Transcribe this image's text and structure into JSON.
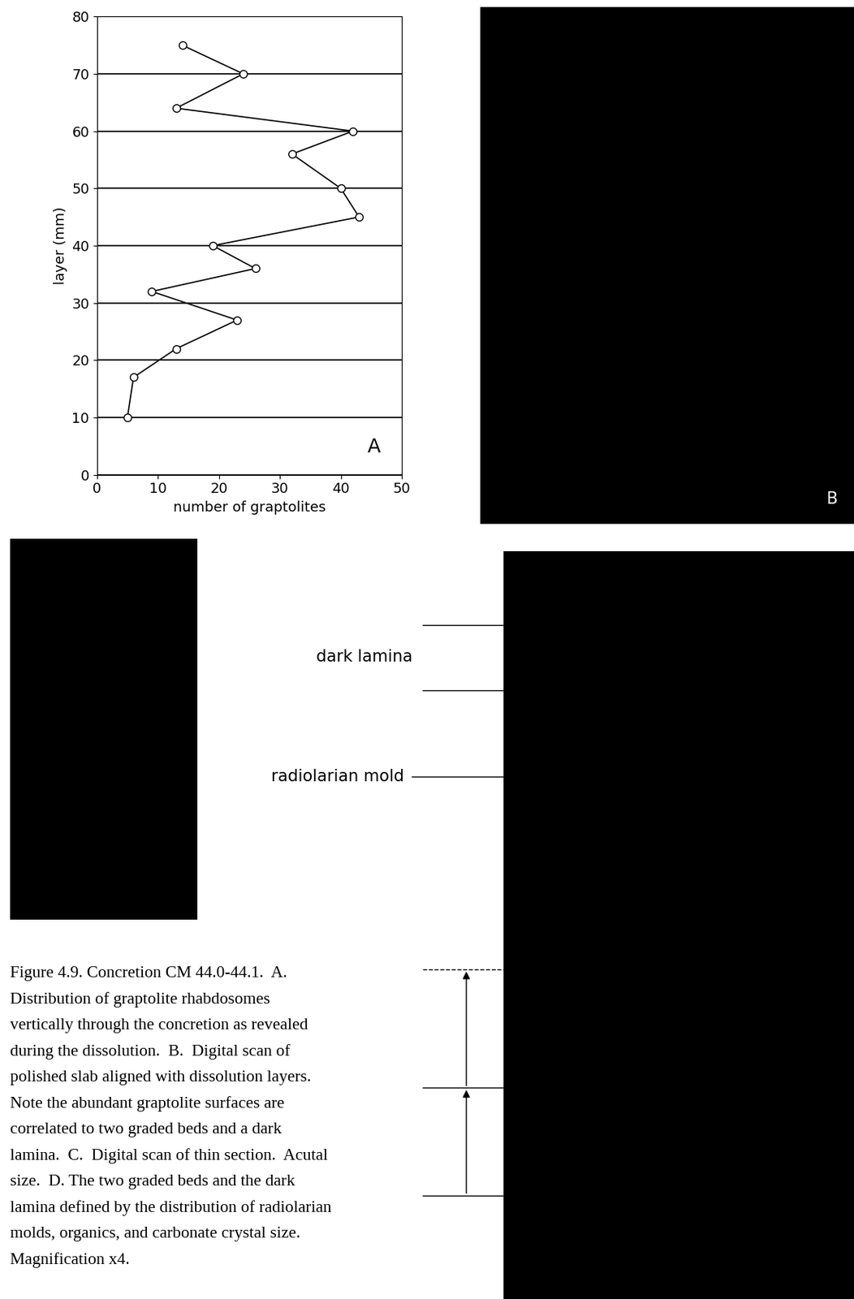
{
  "chart_data": {
    "type": "line",
    "x": [
      14,
      24,
      13,
      42,
      32,
      40,
      43,
      19,
      26,
      9,
      23,
      13,
      6,
      5
    ],
    "values": [
      75,
      70,
      64,
      60,
      56,
      50,
      45,
      40,
      36,
      32,
      27,
      22,
      17,
      10
    ],
    "xlabel": "number of graptolites",
    "ylabel": "layer (mm)",
    "xlim": [
      0,
      50
    ],
    "xticks": [
      0,
      10,
      20,
      30,
      40,
      50
    ],
    "ylim": [
      0,
      80
    ],
    "yticks": [
      0,
      10,
      20,
      30,
      40,
      50,
      60,
      70,
      80
    ],
    "grid": true,
    "color": "#000000",
    "marker": "o",
    "line_style": "solid",
    "panel_label": "A"
  },
  "panels": {
    "B": {
      "label": "B"
    },
    "C": {},
    "D": {
      "annotations": [
        "dark lamina",
        "radiolarian mold"
      ]
    }
  },
  "caption": [
    "Figure 4.9. Concretion CM 44.0-44.1.  A.",
    "Distribution of graptolite rhabdosomes",
    "vertically through the concretion as revealed",
    "during the dissolution.  B.  Digital scan of",
    "polished slab aligned with dissolution layers.",
    "Note the abundant graptolite surfaces are",
    "correlated to two graded beds and a dark",
    "lamina.  C.  Digital scan of thin section.  Acutal",
    "size.  D. The two graded beds and the dark",
    "lamina defined by the distribution of radiolarian",
    "molds, organics, and carbonate crystal size.",
    "Magnification x4."
  ]
}
